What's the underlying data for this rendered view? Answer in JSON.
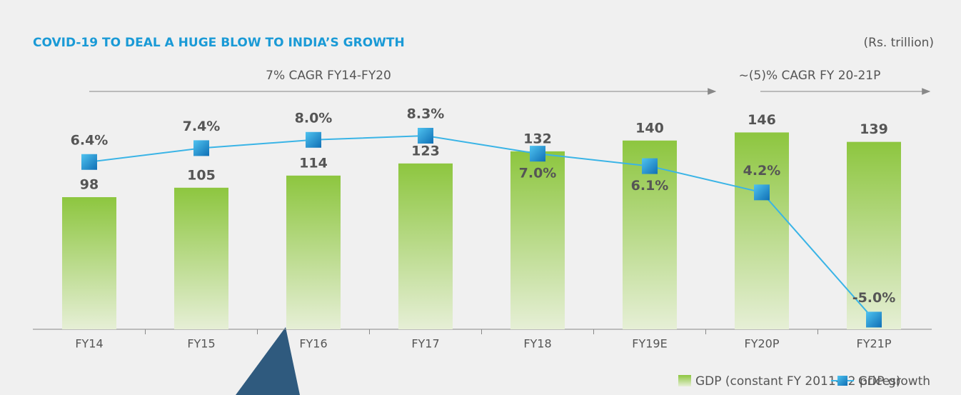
{
  "chart_data": {
    "type": "bar_line",
    "title": "COVID-19 TO DEAL A HUGE BLOW TO INDIA’S GROWTH",
    "subtitle": "(Rs. trillion)",
    "annotations": [
      "7% CAGR FY14-FY20",
      "~(5)% CAGR FY 20-21P"
    ],
    "categories": [
      "FY14",
      "FY15",
      "FY16",
      "FY17",
      "FY18",
      "FY19E",
      "FY20P",
      "FY21P"
    ],
    "series": [
      {
        "name": "GDP (constant FY 2011-12 prices)",
        "type": "bar",
        "color": "#8dc63f",
        "values": [
          98,
          105,
          114,
          123,
          132,
          140,
          146,
          139
        ]
      },
      {
        "name": "GDP growth",
        "type": "line",
        "axis": "y2",
        "color": "#3ab4e6",
        "values": [
          6.4,
          7.4,
          8.0,
          8.3,
          7.0,
          6.1,
          4.2,
          -5.0
        ],
        "value_labels": [
          "6.4%",
          "7.4%",
          "8.0%",
          "8.3%",
          "7.0%",
          "6.1%",
          "4.2%",
          "-5.0%"
        ]
      }
    ],
    "ylim": [
      0,
      200
    ],
    "y2lim": [
      -5.7,
      13.8
    ],
    "grid": false,
    "legend": "bottom-right"
  }
}
